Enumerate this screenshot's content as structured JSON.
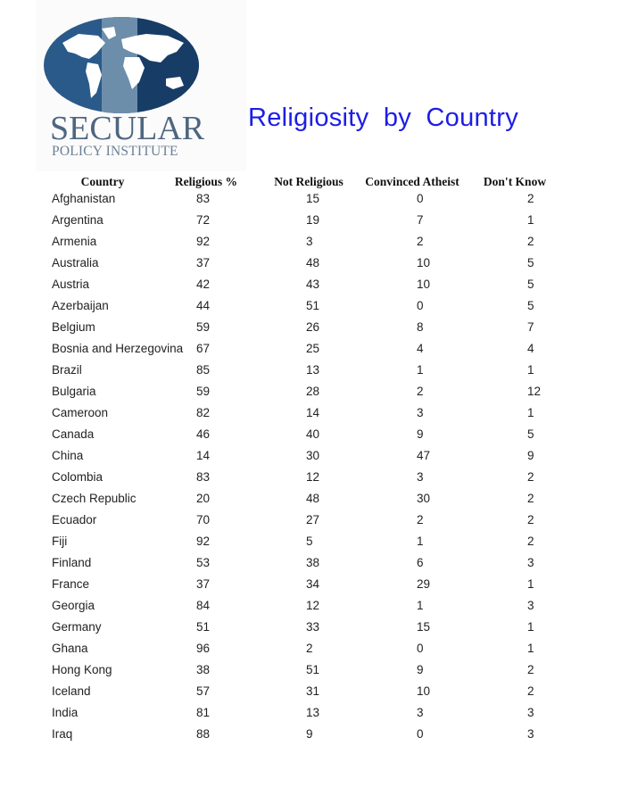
{
  "logo": {
    "word": "SECULAR",
    "sub": "POLICY INSTITUTE",
    "color": "#1f4a78"
  },
  "title": "Religiosity  by  Country",
  "title_color": "#1d1de6",
  "table": {
    "headers": [
      "Country",
      "Religious %",
      "Not Religious",
      "Convinced Atheist",
      "Don't Know"
    ],
    "rows": [
      [
        "Afghanistan",
        "83",
        "15",
        "0",
        "2"
      ],
      [
        "Argentina",
        "72",
        "19",
        "7",
        "1"
      ],
      [
        "Armenia",
        "92",
        "3",
        "2",
        "2"
      ],
      [
        "Australia",
        "37",
        "48",
        "10",
        "5"
      ],
      [
        "Austria",
        "42",
        "43",
        "10",
        "5"
      ],
      [
        "Azerbaijan",
        "44",
        "51",
        "0",
        "5"
      ],
      [
        "Belgium",
        "59",
        "26",
        "8",
        "7"
      ],
      [
        "Bosnia and Herzegovina",
        "67",
        "25",
        "4",
        "4"
      ],
      [
        "Brazil",
        "85",
        "13",
        "1",
        "1"
      ],
      [
        "Bulgaria",
        "59",
        "28",
        "2",
        "12"
      ],
      [
        "Cameroon",
        "82",
        "14",
        "3",
        "1"
      ],
      [
        "Canada",
        "46",
        "40",
        "9",
        "5"
      ],
      [
        "China",
        "14",
        "30",
        "47",
        "9"
      ],
      [
        "Colombia",
        "83",
        "12",
        "3",
        "2"
      ],
      [
        "Czech Republic",
        "20",
        "48",
        "30",
        "2"
      ],
      [
        "Ecuador",
        "70",
        "27",
        "2",
        "2"
      ],
      [
        "Fiji",
        "92",
        "5",
        "1",
        "2"
      ],
      [
        "Finland",
        "53",
        "38",
        "6",
        "3"
      ],
      [
        "France",
        "37",
        "34",
        "29",
        "1"
      ],
      [
        "Georgia",
        "84",
        "12",
        "1",
        "3"
      ],
      [
        "Germany",
        "51",
        "33",
        "15",
        "1"
      ],
      [
        "Ghana",
        "96",
        "2",
        "0",
        "1"
      ],
      [
        "Hong Kong",
        "38",
        "51",
        "9",
        "2"
      ],
      [
        "Iceland",
        "57",
        "31",
        "10",
        "2"
      ],
      [
        "India",
        "81",
        "13",
        "3",
        "3"
      ],
      [
        "Iraq",
        "88",
        "9",
        "0",
        "3"
      ]
    ]
  }
}
